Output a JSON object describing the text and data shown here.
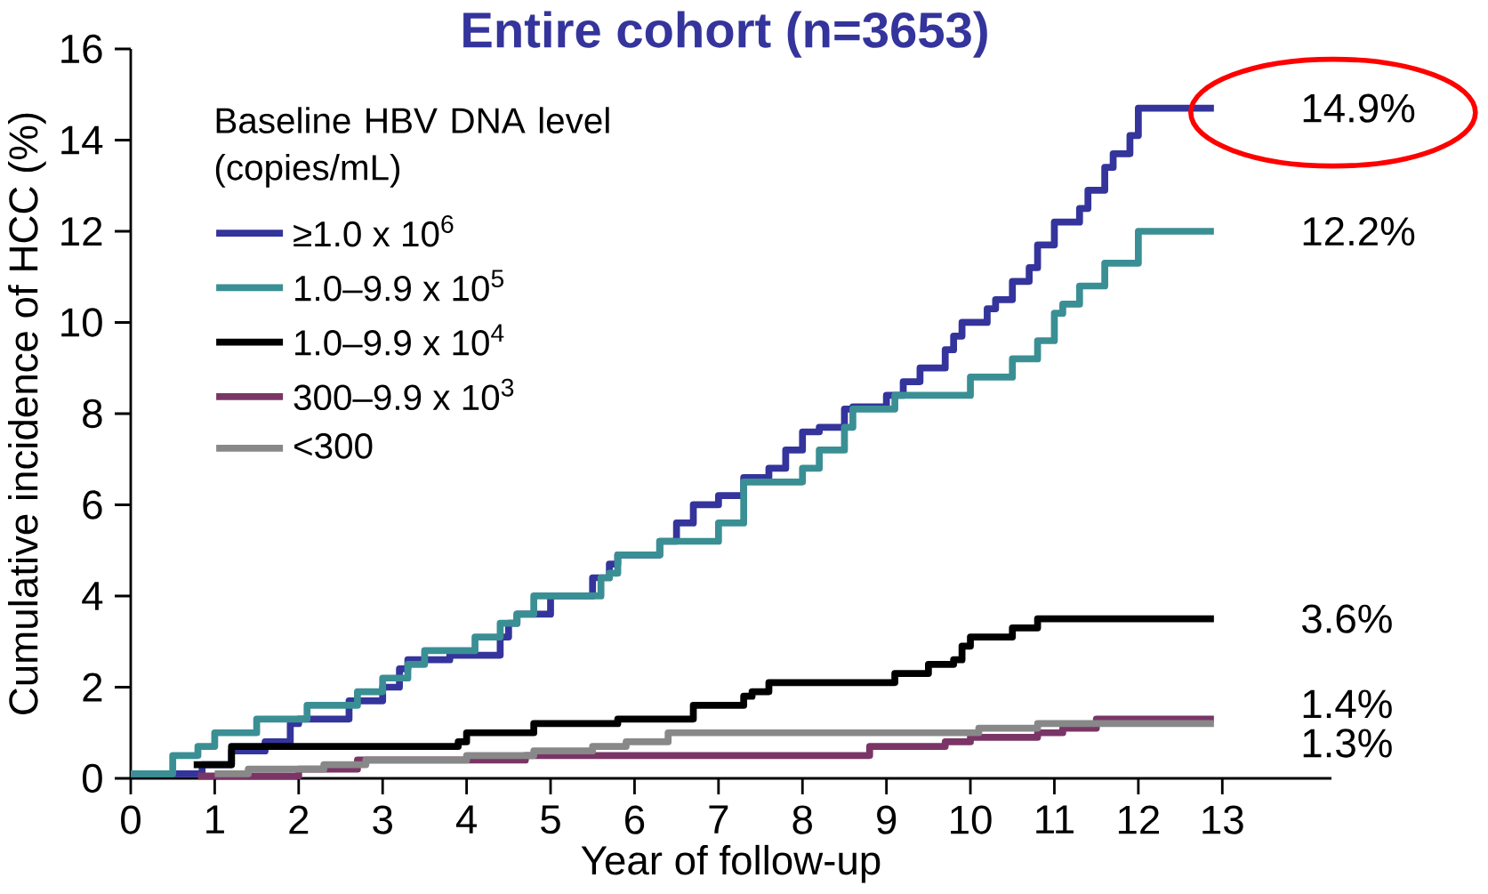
{
  "chart_data": {
    "type": "step",
    "title": "Entire cohort (n=3653)",
    "xlabel": "Year of follow-up",
    "ylabel": "Cumulative incidence of HCC (%)",
    "legend_title": "Baseline HBV DNA level (copies/mL)",
    "xlim": [
      0,
      14.3
    ],
    "ylim": [
      0,
      16
    ],
    "xticks": [
      0,
      1,
      2,
      3,
      4,
      5,
      6,
      7,
      8,
      9,
      10,
      11,
      12,
      13
    ],
    "yticks": [
      0,
      2,
      4,
      6,
      8,
      10,
      12,
      14,
      16
    ],
    "grid": false,
    "legend": "top left",
    "marker": "none",
    "line_style": "solid",
    "series": [
      {
        "name": "≥1.0 x 10$^{6}$",
        "color": "#34349c",
        "x": [
          0,
          0.85,
          1.2,
          1.6,
          1.9,
          2.0,
          2.6,
          3.0,
          3.2,
          3.3,
          3.8,
          4.4,
          4.5,
          4.6,
          5.0,
          5.5,
          5.7,
          5.8,
          6.3,
          6.5,
          6.7,
          7.0,
          7.3,
          7.6,
          7.8,
          8.0,
          8.2,
          8.5,
          8.6,
          9.0,
          9.2,
          9.4,
          9.7,
          9.8,
          9.9,
          10.2,
          10.3,
          10.5,
          10.7,
          10.8,
          11.0,
          11.3,
          11.4,
          11.6,
          11.7,
          11.9,
          12.0,
          12.9
        ],
        "values": [
          0.1,
          0.3,
          0.6,
          0.8,
          1.2,
          1.3,
          1.7,
          2.0,
          2.4,
          2.6,
          2.7,
          3.1,
          3.4,
          3.6,
          4.0,
          4.4,
          4.7,
          4.9,
          5.2,
          5.6,
          6.0,
          6.2,
          6.6,
          6.8,
          7.2,
          7.6,
          7.7,
          8.1,
          8.15,
          8.4,
          8.7,
          9.0,
          9.4,
          9.7,
          10.0,
          10.3,
          10.5,
          10.9,
          11.2,
          11.7,
          12.2,
          12.5,
          12.9,
          13.4,
          13.7,
          14.1,
          14.7,
          14.7
        ]
      },
      {
        "name": "1.0–9.9 x 10$^{5}$",
        "color": "#3a8f94",
        "x": [
          0,
          0.5,
          0.8,
          1.0,
          1.5,
          2.1,
          2.7,
          3.0,
          3.3,
          3.5,
          4.1,
          4.4,
          4.6,
          4.8,
          5.6,
          5.7,
          5.8,
          6.3,
          7.0,
          7.3,
          8.0,
          8.2,
          8.5,
          8.6,
          9.1,
          10.0,
          10.5,
          10.8,
          11.0,
          11.1,
          11.3,
          11.6,
          12.0,
          12.9
        ],
        "values": [
          0.1,
          0.5,
          0.7,
          1.0,
          1.3,
          1.6,
          1.9,
          2.2,
          2.5,
          2.8,
          3.1,
          3.4,
          3.6,
          4.0,
          4.4,
          4.5,
          4.9,
          5.2,
          5.6,
          6.5,
          6.8,
          7.2,
          7.7,
          8.1,
          8.4,
          8.8,
          9.2,
          9.6,
          10.2,
          10.4,
          10.8,
          11.3,
          12.0,
          12.0
        ]
      },
      {
        "name": "1.0–9.9 x 10$^{4}$",
        "color": "#000000",
        "x": [
          0.75,
          1.2,
          3.9,
          4.0,
          4.8,
          5.8,
          6.7,
          7.3,
          7.4,
          7.6,
          9.1,
          9.5,
          9.8,
          9.9,
          10.0,
          10.5,
          10.8,
          12.9
        ],
        "values": [
          0.3,
          0.7,
          0.8,
          1.0,
          1.2,
          1.3,
          1.6,
          1.8,
          1.9,
          2.1,
          2.3,
          2.5,
          2.6,
          2.9,
          3.1,
          3.3,
          3.5,
          3.5
        ]
      },
      {
        "name": "300–9.9 x 10$^{3}$",
        "color": "#7a3566",
        "x": [
          0.8,
          2.0,
          2.7,
          4.7,
          8.8,
          9.7,
          10.0,
          10.8,
          11.1,
          11.5,
          12.9
        ],
        "values": [
          0.05,
          0.2,
          0.4,
          0.5,
          0.7,
          0.8,
          0.9,
          1.0,
          1.1,
          1.3,
          1.3
        ]
      },
      {
        "name": "<300",
        "color": "#888888",
        "x": [
          1.0,
          1.4,
          2.3,
          2.8,
          4.0,
          4.8,
          5.5,
          5.9,
          6.4,
          10.1,
          10.8,
          12.9
        ],
        "values": [
          0.1,
          0.2,
          0.3,
          0.4,
          0.5,
          0.6,
          0.7,
          0.8,
          1.0,
          1.1,
          1.2,
          1.2
        ]
      }
    ],
    "annotations": [
      "14.9%",
      "12.2%",
      "3.6%",
      "1.4%",
      "1.3%"
    ]
  }
}
